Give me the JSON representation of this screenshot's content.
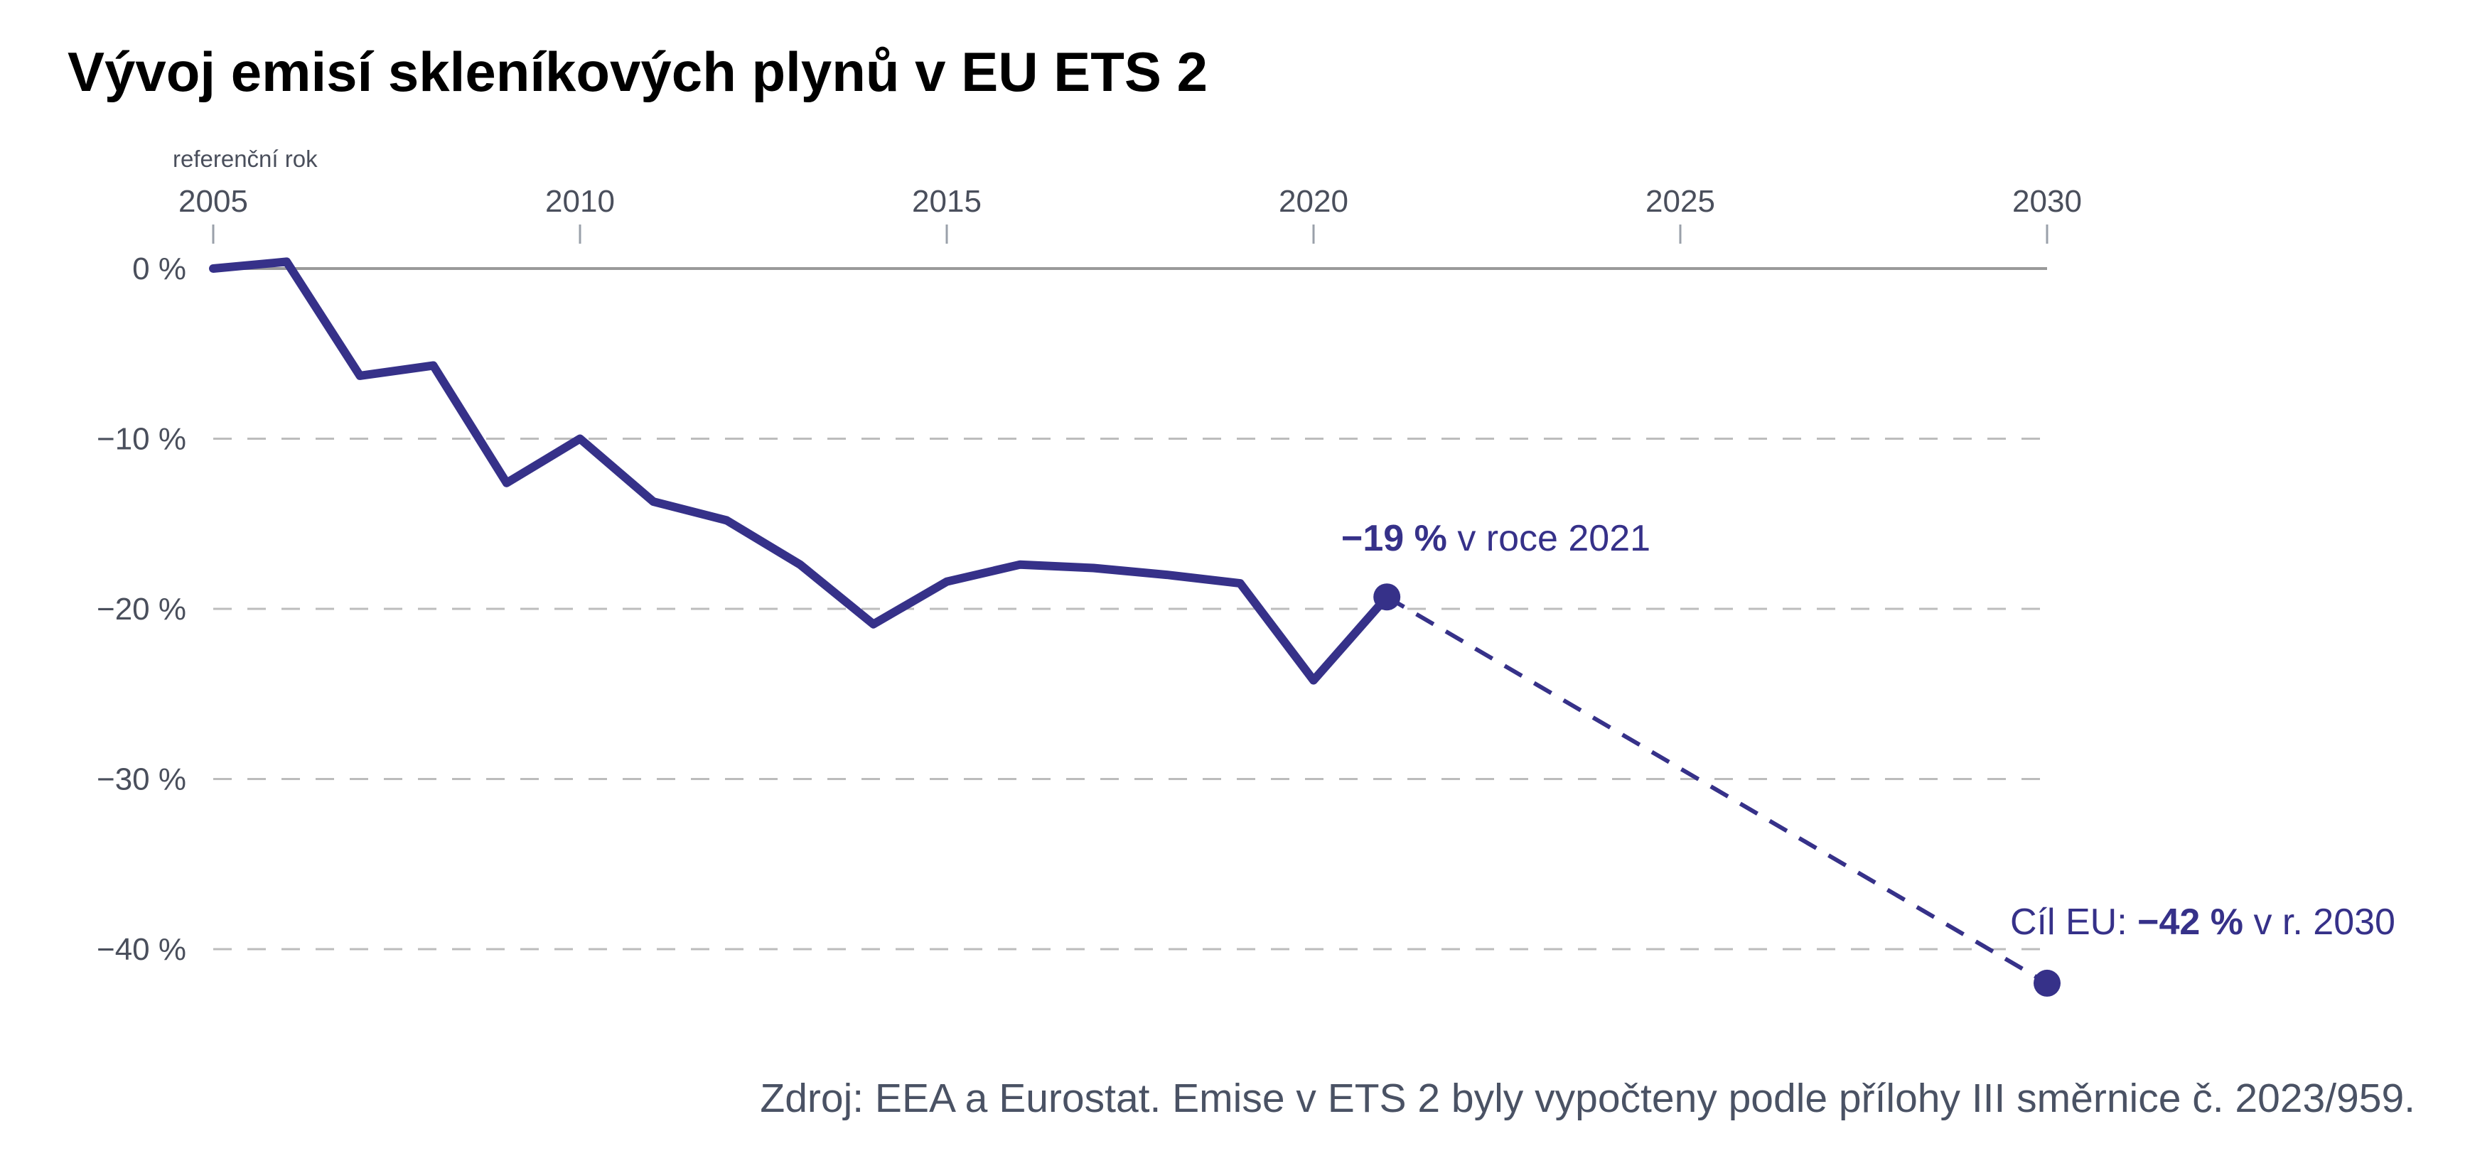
{
  "chart_data": {
    "type": "line",
    "title": "Vývoj emisí skleníkových plynů v EU ETS 2",
    "x_axis": {
      "position": "top",
      "range": [
        2005,
        2030
      ],
      "ticks": [
        2005,
        2010,
        2015,
        2020,
        2025,
        2030
      ],
      "tick_labels": [
        "2005",
        "2010",
        "2015",
        "2020",
        "2025",
        "2030"
      ],
      "reference_label": "referenční rok"
    },
    "y_axis": {
      "range": [
        -42,
        0
      ],
      "ticks": [
        0,
        -10,
        -20,
        -30,
        -40
      ],
      "tick_labels": [
        "0 %",
        "−10 %",
        "−20 %",
        "−30 %",
        "−40 %"
      ]
    },
    "grid": {
      "horizontal": true,
      "style": "dashed"
    },
    "series": [
      {
        "x": [
          2005,
          2006,
          2007,
          2008,
          2009,
          2010,
          2011,
          2012,
          2013,
          2014,
          2015,
          2016,
          2017,
          2018,
          2019,
          2020,
          2021
        ],
        "y": [
          0,
          0.4,
          -6.3,
          -5.7,
          -12.6,
          -10,
          -13.7,
          -14.8,
          -17.4,
          -20.9,
          -18.4,
          -17.4,
          -17.6,
          -18,
          -18.5,
          -24.2,
          -19.3
        ],
        "color": "#363189",
        "style": "solid"
      },
      {
        "x": [
          2021,
          2030
        ],
        "y": [
          -19.3,
          -42
        ],
        "color": "#363189",
        "style": "dashed"
      }
    ],
    "markers": [
      {
        "x": 2021,
        "y": -19.3
      },
      {
        "x": 2030,
        "y": -42
      }
    ],
    "annotations": [
      {
        "bold": "−19 %",
        "rest": " v roce 2021"
      },
      {
        "prefix": "Cíl EU: ",
        "bold": "−42 %",
        "rest": " v r. 2030"
      }
    ],
    "source": "Zdroj: EEA a Eurostat. Emise v ETS 2 byly vypočteny podle přílohy III směrnice č. 2023/959."
  },
  "colors": {
    "series": "#363189",
    "grid": "#bcbcbc",
    "zero_line": "#9a9a9a",
    "tick_text": "#4a4f5c",
    "source_text": "#4a5264"
  }
}
